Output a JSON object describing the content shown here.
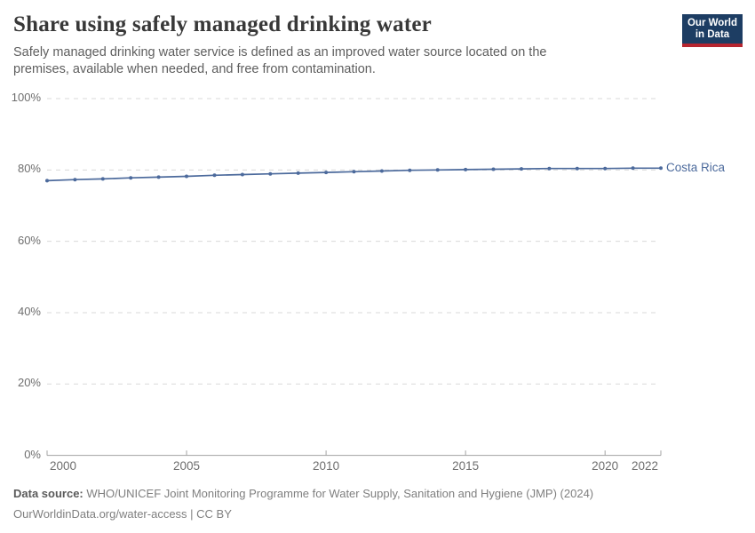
{
  "header": {
    "title": "Share using safely managed drinking water",
    "subtitle": "Safely managed drinking water service is defined as an improved water source located on the premises, available when needed, and free from contamination.",
    "logo": {
      "line1": "Our World",
      "line2": "in Data",
      "bg_color": "#1d3d63",
      "accent_color": "#b6252f"
    }
  },
  "chart_data": {
    "type": "line",
    "title": "Share using safely managed drinking water",
    "xlabel": "",
    "ylabel": "",
    "xlim": [
      2000,
      2022
    ],
    "ylim": [
      0,
      100
    ],
    "grid": "horizontal-dashed",
    "legend_position": "end-of-line",
    "x_ticks": [
      2000,
      2005,
      2010,
      2015,
      2020,
      2022
    ],
    "y_ticks": [
      0,
      20,
      40,
      60,
      80,
      100
    ],
    "y_tick_suffix": "%",
    "series": [
      {
        "name": "Costa Rica",
        "color": "#4c6a9c",
        "x": [
          2000,
          2001,
          2002,
          2003,
          2004,
          2005,
          2006,
          2007,
          2008,
          2009,
          2010,
          2011,
          2012,
          2013,
          2014,
          2015,
          2016,
          2017,
          2018,
          2019,
          2020,
          2021,
          2022
        ],
        "values": [
          77.0,
          77.3,
          77.5,
          77.8,
          78.0,
          78.2,
          78.5,
          78.7,
          78.9,
          79.1,
          79.3,
          79.5,
          79.7,
          79.9,
          80.0,
          80.1,
          80.2,
          80.3,
          80.4,
          80.4,
          80.4,
          80.5,
          80.5
        ]
      }
    ]
  },
  "colors": {
    "gridline": "#d9d9d9",
    "axis": "#a3a3a3",
    "tick_label": "#6e6e6e"
  },
  "footer": {
    "source_label": "Data source:",
    "source_text": " WHO/UNICEF Joint Monitoring Programme for Water Supply, Sanitation and Hygiene (JMP) (2024)",
    "link_line": "OurWorldinData.org/water-access | CC BY"
  }
}
